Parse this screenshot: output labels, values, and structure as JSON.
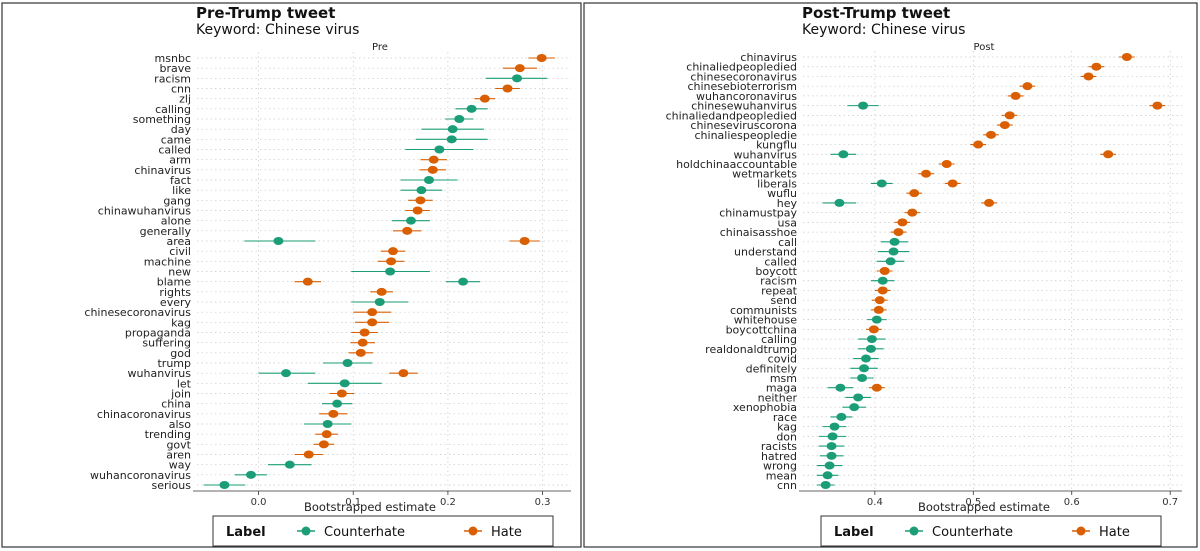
{
  "colors": {
    "counterhate": "#1b9e77",
    "hate": "#d95f02"
  },
  "legend": {
    "title": "Label",
    "entries": [
      "Counterhate",
      "Hate"
    ]
  },
  "chart_data": [
    {
      "type": "scatter",
      "title": "Pre-Trump tweet",
      "subtitle": "Keyword: Chinese virus",
      "facet": "Pre",
      "xlabel": "Bootstrapped estimate",
      "xlim": [
        -0.065,
        0.33
      ],
      "xticks": [
        0.0,
        0.1,
        0.2,
        0.3
      ],
      "xtick_labels": [
        "0.0",
        "0.1",
        "0.2",
        "0.3"
      ],
      "grid": true,
      "legend_position": "bottom",
      "categories": [
        "msnbc",
        "brave",
        "racism",
        "cnn",
        "zlj",
        "calling",
        "something",
        "day",
        "came",
        "called",
        "arm",
        "chinavirus",
        "fact",
        "like",
        "gang",
        "chinawuhanvirus",
        "alone",
        "generally",
        "area",
        "civil",
        "machine",
        "new",
        "blame",
        "rights",
        "every",
        "chinesecoronavirus",
        "kag",
        "propaganda",
        "suffering",
        "god",
        "trump",
        "wuhanvirus",
        "let",
        "join",
        "china",
        "chinacoronavirus",
        "also",
        "trending",
        "govt",
        "aren",
        "way",
        "wuhancoronavirus",
        "serious"
      ],
      "points": [
        {
          "term": "msnbc",
          "label": "Hate",
          "x": 0.299,
          "lo": 0.285,
          "hi": 0.313
        },
        {
          "term": "brave",
          "label": "Hate",
          "x": 0.276,
          "lo": 0.258,
          "hi": 0.294
        },
        {
          "term": "racism",
          "label": "Counterhate",
          "x": 0.273,
          "lo": 0.24,
          "hi": 0.305
        },
        {
          "term": "cnn",
          "label": "Hate",
          "x": 0.263,
          "lo": 0.25,
          "hi": 0.276
        },
        {
          "term": "zlj",
          "label": "Hate",
          "x": 0.239,
          "lo": 0.228,
          "hi": 0.25
        },
        {
          "term": "calling",
          "label": "Counterhate",
          "x": 0.225,
          "lo": 0.208,
          "hi": 0.242
        },
        {
          "term": "something",
          "label": "Counterhate",
          "x": 0.212,
          "lo": 0.197,
          "hi": 0.227
        },
        {
          "term": "day",
          "label": "Counterhate",
          "x": 0.205,
          "lo": 0.172,
          "hi": 0.238
        },
        {
          "term": "came",
          "label": "Counterhate",
          "x": 0.204,
          "lo": 0.166,
          "hi": 0.242
        },
        {
          "term": "called",
          "label": "Counterhate",
          "x": 0.191,
          "lo": 0.155,
          "hi": 0.227
        },
        {
          "term": "arm",
          "label": "Hate",
          "x": 0.185,
          "lo": 0.171,
          "hi": 0.199
        },
        {
          "term": "chinavirus",
          "label": "Hate",
          "x": 0.184,
          "lo": 0.17,
          "hi": 0.198
        },
        {
          "term": "fact",
          "label": "Counterhate",
          "x": 0.18,
          "lo": 0.15,
          "hi": 0.21
        },
        {
          "term": "like",
          "label": "Counterhate",
          "x": 0.172,
          "lo": 0.15,
          "hi": 0.194
        },
        {
          "term": "gang",
          "label": "Hate",
          "x": 0.171,
          "lo": 0.158,
          "hi": 0.184
        },
        {
          "term": "chinawuhanvirus",
          "label": "Hate",
          "x": 0.168,
          "lo": 0.155,
          "hi": 0.181
        },
        {
          "term": "alone",
          "label": "Counterhate",
          "x": 0.161,
          "lo": 0.141,
          "hi": 0.181
        },
        {
          "term": "generally",
          "label": "Hate",
          "x": 0.157,
          "lo": 0.142,
          "hi": 0.172
        },
        {
          "term": "area",
          "label": "Counterhate",
          "x": 0.021,
          "lo": -0.015,
          "hi": 0.06
        },
        {
          "term": "area",
          "label": "Hate",
          "x": 0.281,
          "lo": 0.265,
          "hi": 0.297
        },
        {
          "term": "civil",
          "label": "Hate",
          "x": 0.142,
          "lo": 0.129,
          "hi": 0.155
        },
        {
          "term": "machine",
          "label": "Hate",
          "x": 0.14,
          "lo": 0.126,
          "hi": 0.154
        },
        {
          "term": "new",
          "label": "Counterhate",
          "x": 0.139,
          "lo": 0.098,
          "hi": 0.181
        },
        {
          "term": "blame",
          "label": "Counterhate",
          "x": 0.216,
          "lo": 0.198,
          "hi": 0.234
        },
        {
          "term": "blame",
          "label": "Hate",
          "x": 0.052,
          "lo": 0.038,
          "hi": 0.066
        },
        {
          "term": "rights",
          "label": "Hate",
          "x": 0.13,
          "lo": 0.118,
          "hi": 0.142
        },
        {
          "term": "every",
          "label": "Counterhate",
          "x": 0.128,
          "lo": 0.098,
          "hi": 0.158
        },
        {
          "term": "chinesecoronavirus",
          "label": "Hate",
          "x": 0.12,
          "lo": 0.1,
          "hi": 0.14
        },
        {
          "term": "kag",
          "label": "Hate",
          "x": 0.12,
          "lo": 0.102,
          "hi": 0.138
        },
        {
          "term": "propaganda",
          "label": "Hate",
          "x": 0.112,
          "lo": 0.098,
          "hi": 0.126
        },
        {
          "term": "suffering",
          "label": "Hate",
          "x": 0.11,
          "lo": 0.097,
          "hi": 0.123
        },
        {
          "term": "god",
          "label": "Hate",
          "x": 0.108,
          "lo": 0.095,
          "hi": 0.121
        },
        {
          "term": "trump",
          "label": "Counterhate",
          "x": 0.094,
          "lo": 0.068,
          "hi": 0.12
        },
        {
          "term": "wuhanvirus",
          "label": "Counterhate",
          "x": 0.029,
          "lo": 0.0,
          "hi": 0.06
        },
        {
          "term": "wuhanvirus",
          "label": "Hate",
          "x": 0.153,
          "lo": 0.138,
          "hi": 0.168
        },
        {
          "term": "let",
          "label": "Counterhate",
          "x": 0.091,
          "lo": 0.052,
          "hi": 0.13
        },
        {
          "term": "join",
          "label": "Hate",
          "x": 0.088,
          "lo": 0.075,
          "hi": 0.101
        },
        {
          "term": "china",
          "label": "Counterhate",
          "x": 0.083,
          "lo": 0.067,
          "hi": 0.099
        },
        {
          "term": "chinacoronavirus",
          "label": "Hate",
          "x": 0.079,
          "lo": 0.064,
          "hi": 0.094
        },
        {
          "term": "also",
          "label": "Counterhate",
          "x": 0.073,
          "lo": 0.048,
          "hi": 0.098
        },
        {
          "term": "trending",
          "label": "Hate",
          "x": 0.072,
          "lo": 0.06,
          "hi": 0.084
        },
        {
          "term": "govt",
          "label": "Hate",
          "x": 0.069,
          "lo": 0.058,
          "hi": 0.08
        },
        {
          "term": "aren",
          "label": "Hate",
          "x": 0.053,
          "lo": 0.038,
          "hi": 0.068
        },
        {
          "term": "way",
          "label": "Counterhate",
          "x": 0.033,
          "lo": 0.01,
          "hi": 0.056
        },
        {
          "term": "wuhancoronavirus",
          "label": "Counterhate",
          "x": -0.008,
          "lo": -0.025,
          "hi": 0.009
        },
        {
          "term": "serious",
          "label": "Counterhate",
          "x": -0.036,
          "lo": -0.058,
          "hi": -0.014
        }
      ]
    },
    {
      "type": "scatter",
      "title": "Post-Trump tweet",
      "subtitle": "Keyword: Chinese virus",
      "facet": "Post",
      "xlabel": "Bootstrapped estimate",
      "xlim": [
        0.327,
        0.712
      ],
      "xticks": [
        0.4,
        0.5,
        0.6,
        0.7
      ],
      "xtick_labels": [
        "0.4",
        "0.5",
        "0.6",
        "0.7"
      ],
      "grid": true,
      "legend_position": "bottom",
      "categories": [
        "chinavirus",
        "chinaliedpeopledied",
        "chinesecoronavirus",
        "chinesebioterrorism",
        "wuhancoronavirus",
        "chinesewuhanvirus",
        "chinaliedandpeopledied",
        "chineseviruscorona",
        "chinaliespeopledie",
        "kungflu",
        "wuhanvirus",
        "holdchinaaccountable",
        "wetmarkets",
        "liberals",
        "wuflu",
        "hey",
        "chinamustpay",
        "usa",
        "chinaisasshoe",
        "call",
        "understand",
        "called",
        "boycott",
        "racism",
        "repeat",
        "send",
        "communists",
        "whitehouse",
        "boycottchina",
        "calling",
        "realdonaldtrump",
        "covid",
        "definitely",
        "msm",
        "maga",
        "neither",
        "xenophobia",
        "race",
        "kag",
        "don",
        "racists",
        "hatred",
        "wrong",
        "mean",
        "cnn"
      ],
      "points": [
        {
          "term": "chinavirus",
          "label": "Hate",
          "x": 0.656,
          "lo": 0.648,
          "hi": 0.664
        },
        {
          "term": "chinaliedpeopledied",
          "label": "Hate",
          "x": 0.625,
          "lo": 0.617,
          "hi": 0.633
        },
        {
          "term": "chinesecoronavirus",
          "label": "Hate",
          "x": 0.617,
          "lo": 0.609,
          "hi": 0.625
        },
        {
          "term": "chinesebioterrorism",
          "label": "Hate",
          "x": 0.555,
          "lo": 0.547,
          "hi": 0.563
        },
        {
          "term": "wuhancoronavirus",
          "label": "Hate",
          "x": 0.543,
          "lo": 0.535,
          "hi": 0.551
        },
        {
          "term": "chinesewuhanvirus",
          "label": "Counterhate",
          "x": 0.388,
          "lo": 0.372,
          "hi": 0.404
        },
        {
          "term": "chinesewuhanvirus",
          "label": "Hate",
          "x": 0.687,
          "lo": 0.679,
          "hi": 0.695
        },
        {
          "term": "chinaliedandpeopledied",
          "label": "Hate",
          "x": 0.537,
          "lo": 0.529,
          "hi": 0.545
        },
        {
          "term": "chineseviruscorona",
          "label": "Hate",
          "x": 0.532,
          "lo": 0.524,
          "hi": 0.54
        },
        {
          "term": "chinaliespeopledie",
          "label": "Hate",
          "x": 0.518,
          "lo": 0.51,
          "hi": 0.526
        },
        {
          "term": "kungflu",
          "label": "Hate",
          "x": 0.505,
          "lo": 0.497,
          "hi": 0.513
        },
        {
          "term": "wuhanvirus",
          "label": "Counterhate",
          "x": 0.368,
          "lo": 0.355,
          "hi": 0.381
        },
        {
          "term": "wuhanvirus",
          "label": "Hate",
          "x": 0.637,
          "lo": 0.629,
          "hi": 0.645
        },
        {
          "term": "holdchinaaccountable",
          "label": "Hate",
          "x": 0.473,
          "lo": 0.465,
          "hi": 0.481
        },
        {
          "term": "wetmarkets",
          "label": "Hate",
          "x": 0.452,
          "lo": 0.444,
          "hi": 0.46
        },
        {
          "term": "liberals",
          "label": "Counterhate",
          "x": 0.407,
          "lo": 0.396,
          "hi": 0.418
        },
        {
          "term": "liberals",
          "label": "Hate",
          "x": 0.479,
          "lo": 0.471,
          "hi": 0.487
        },
        {
          "term": "wuflu",
          "label": "Hate",
          "x": 0.44,
          "lo": 0.432,
          "hi": 0.448
        },
        {
          "term": "hey",
          "label": "Counterhate",
          "x": 0.364,
          "lo": 0.347,
          "hi": 0.381
        },
        {
          "term": "hey",
          "label": "Hate",
          "x": 0.516,
          "lo": 0.508,
          "hi": 0.524
        },
        {
          "term": "chinamustpay",
          "label": "Hate",
          "x": 0.438,
          "lo": 0.43,
          "hi": 0.446
        },
        {
          "term": "usa",
          "label": "Hate",
          "x": 0.428,
          "lo": 0.42,
          "hi": 0.436
        },
        {
          "term": "chinaisasshoe",
          "label": "Hate",
          "x": 0.424,
          "lo": 0.416,
          "hi": 0.432
        },
        {
          "term": "call",
          "label": "Counterhate",
          "x": 0.42,
          "lo": 0.406,
          "hi": 0.434
        },
        {
          "term": "understand",
          "label": "Counterhate",
          "x": 0.419,
          "lo": 0.403,
          "hi": 0.435
        },
        {
          "term": "called",
          "label": "Counterhate",
          "x": 0.416,
          "lo": 0.402,
          "hi": 0.43
        },
        {
          "term": "boycott",
          "label": "Hate",
          "x": 0.41,
          "lo": 0.402,
          "hi": 0.418
        },
        {
          "term": "racism",
          "label": "Counterhate",
          "x": 0.408,
          "lo": 0.396,
          "hi": 0.42
        },
        {
          "term": "repeat",
          "label": "Hate",
          "x": 0.408,
          "lo": 0.4,
          "hi": 0.416
        },
        {
          "term": "send",
          "label": "Hate",
          "x": 0.405,
          "lo": 0.397,
          "hi": 0.413
        },
        {
          "term": "communists",
          "label": "Hate",
          "x": 0.404,
          "lo": 0.396,
          "hi": 0.412
        },
        {
          "term": "whitehouse",
          "label": "Counterhate",
          "x": 0.402,
          "lo": 0.392,
          "hi": 0.412
        },
        {
          "term": "boycottchina",
          "label": "Hate",
          "x": 0.399,
          "lo": 0.391,
          "hi": 0.407
        },
        {
          "term": "calling",
          "label": "Counterhate",
          "x": 0.397,
          "lo": 0.383,
          "hi": 0.411
        },
        {
          "term": "realdonaldtrump",
          "label": "Counterhate",
          "x": 0.396,
          "lo": 0.383,
          "hi": 0.409
        },
        {
          "term": "covid",
          "label": "Counterhate",
          "x": 0.391,
          "lo": 0.378,
          "hi": 0.404
        },
        {
          "term": "definitely",
          "label": "Counterhate",
          "x": 0.389,
          "lo": 0.375,
          "hi": 0.403
        },
        {
          "term": "msm",
          "label": "Counterhate",
          "x": 0.387,
          "lo": 0.375,
          "hi": 0.399
        },
        {
          "term": "maga",
          "label": "Counterhate",
          "x": 0.365,
          "lo": 0.352,
          "hi": 0.378
        },
        {
          "term": "maga",
          "label": "Hate",
          "x": 0.402,
          "lo": 0.394,
          "hi": 0.41
        },
        {
          "term": "neither",
          "label": "Counterhate",
          "x": 0.383,
          "lo": 0.37,
          "hi": 0.396
        },
        {
          "term": "xenophobia",
          "label": "Counterhate",
          "x": 0.379,
          "lo": 0.367,
          "hi": 0.391
        },
        {
          "term": "race",
          "label": "Counterhate",
          "x": 0.366,
          "lo": 0.355,
          "hi": 0.377
        },
        {
          "term": "kag",
          "label": "Counterhate",
          "x": 0.359,
          "lo": 0.347,
          "hi": 0.371
        },
        {
          "term": "don",
          "label": "Counterhate",
          "x": 0.357,
          "lo": 0.343,
          "hi": 0.371
        },
        {
          "term": "racists",
          "label": "Counterhate",
          "x": 0.356,
          "lo": 0.343,
          "hi": 0.369
        },
        {
          "term": "hatred",
          "label": "Counterhate",
          "x": 0.356,
          "lo": 0.344,
          "hi": 0.368
        },
        {
          "term": "wrong",
          "label": "Counterhate",
          "x": 0.354,
          "lo": 0.341,
          "hi": 0.367
        },
        {
          "term": "mean",
          "label": "Counterhate",
          "x": 0.352,
          "lo": 0.341,
          "hi": 0.363
        },
        {
          "term": "cnn",
          "label": "Counterhate",
          "x": 0.35,
          "lo": 0.341,
          "hi": 0.359
        }
      ]
    }
  ]
}
